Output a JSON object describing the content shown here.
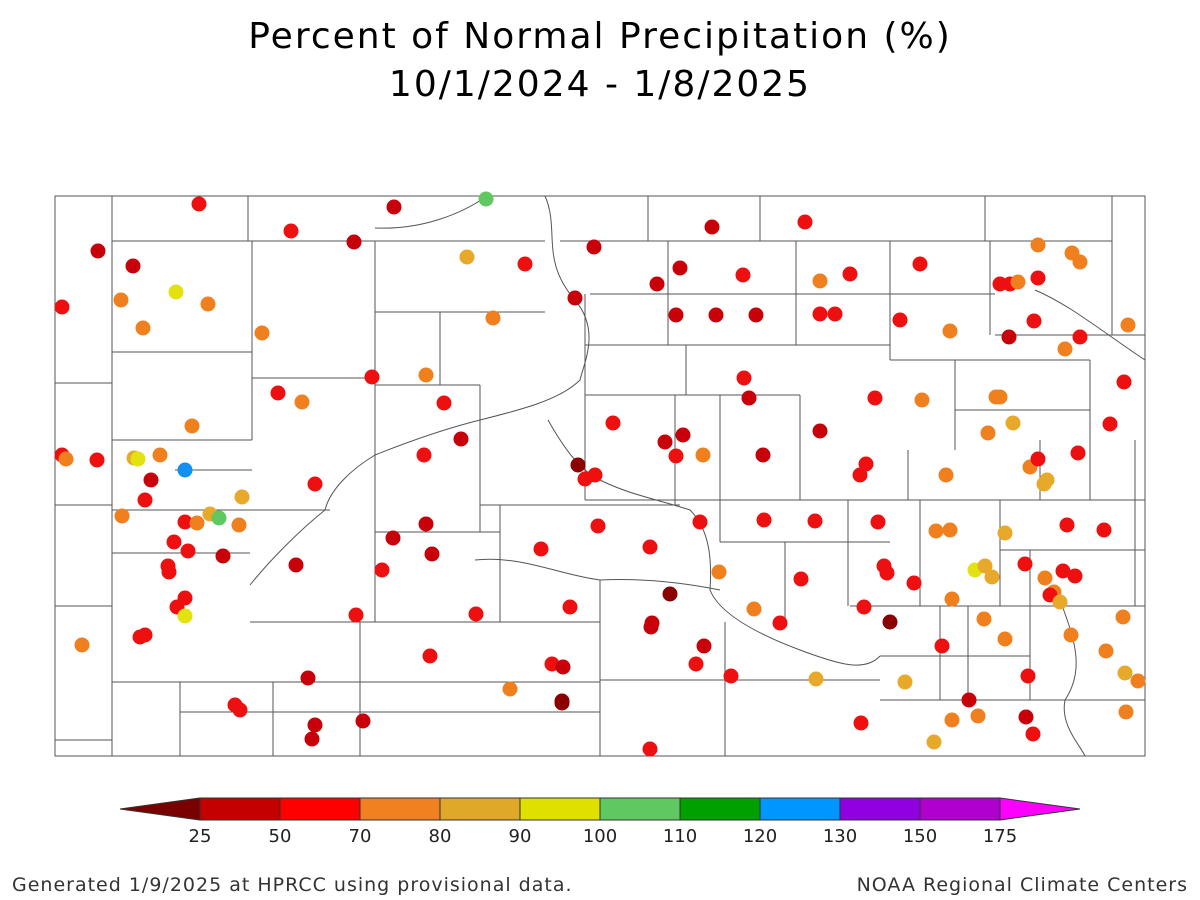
{
  "title": "Percent of Normal Precipitation (%)",
  "period": "10/1/2024 - 1/8/2025",
  "footer_left": "Generated 1/9/2025 at HPRCC using provisional data.",
  "footer_right": "NOAA Regional Climate Centers",
  "legend": {
    "ticks": [
      "25",
      "50",
      "70",
      "80",
      "90",
      "100",
      "110",
      "120",
      "130",
      "150",
      "175"
    ],
    "colors": [
      "#7a0000",
      "#c40000",
      "#ff0000",
      "#f08020",
      "#e0a828",
      "#e0e000",
      "#60c860",
      "#00a000",
      "#0096ff",
      "#9000e0",
      "#b000d0",
      "#ff00ff"
    ]
  },
  "stations": {
    "category_colors": [
      "#8b0000",
      "#c8000a",
      "#ee1010",
      "#f0801e",
      "#e8a82a",
      "#e2e210",
      "#60c860",
      "#00a000",
      "#1090f0"
    ],
    "counts": {
      "lt25": 4,
      "25_50": 30,
      "50_70": 90,
      "70_80": 38,
      "80_90": 13,
      "90_100": 4,
      "100_110": 2,
      "120_130": 1
    }
  }
}
